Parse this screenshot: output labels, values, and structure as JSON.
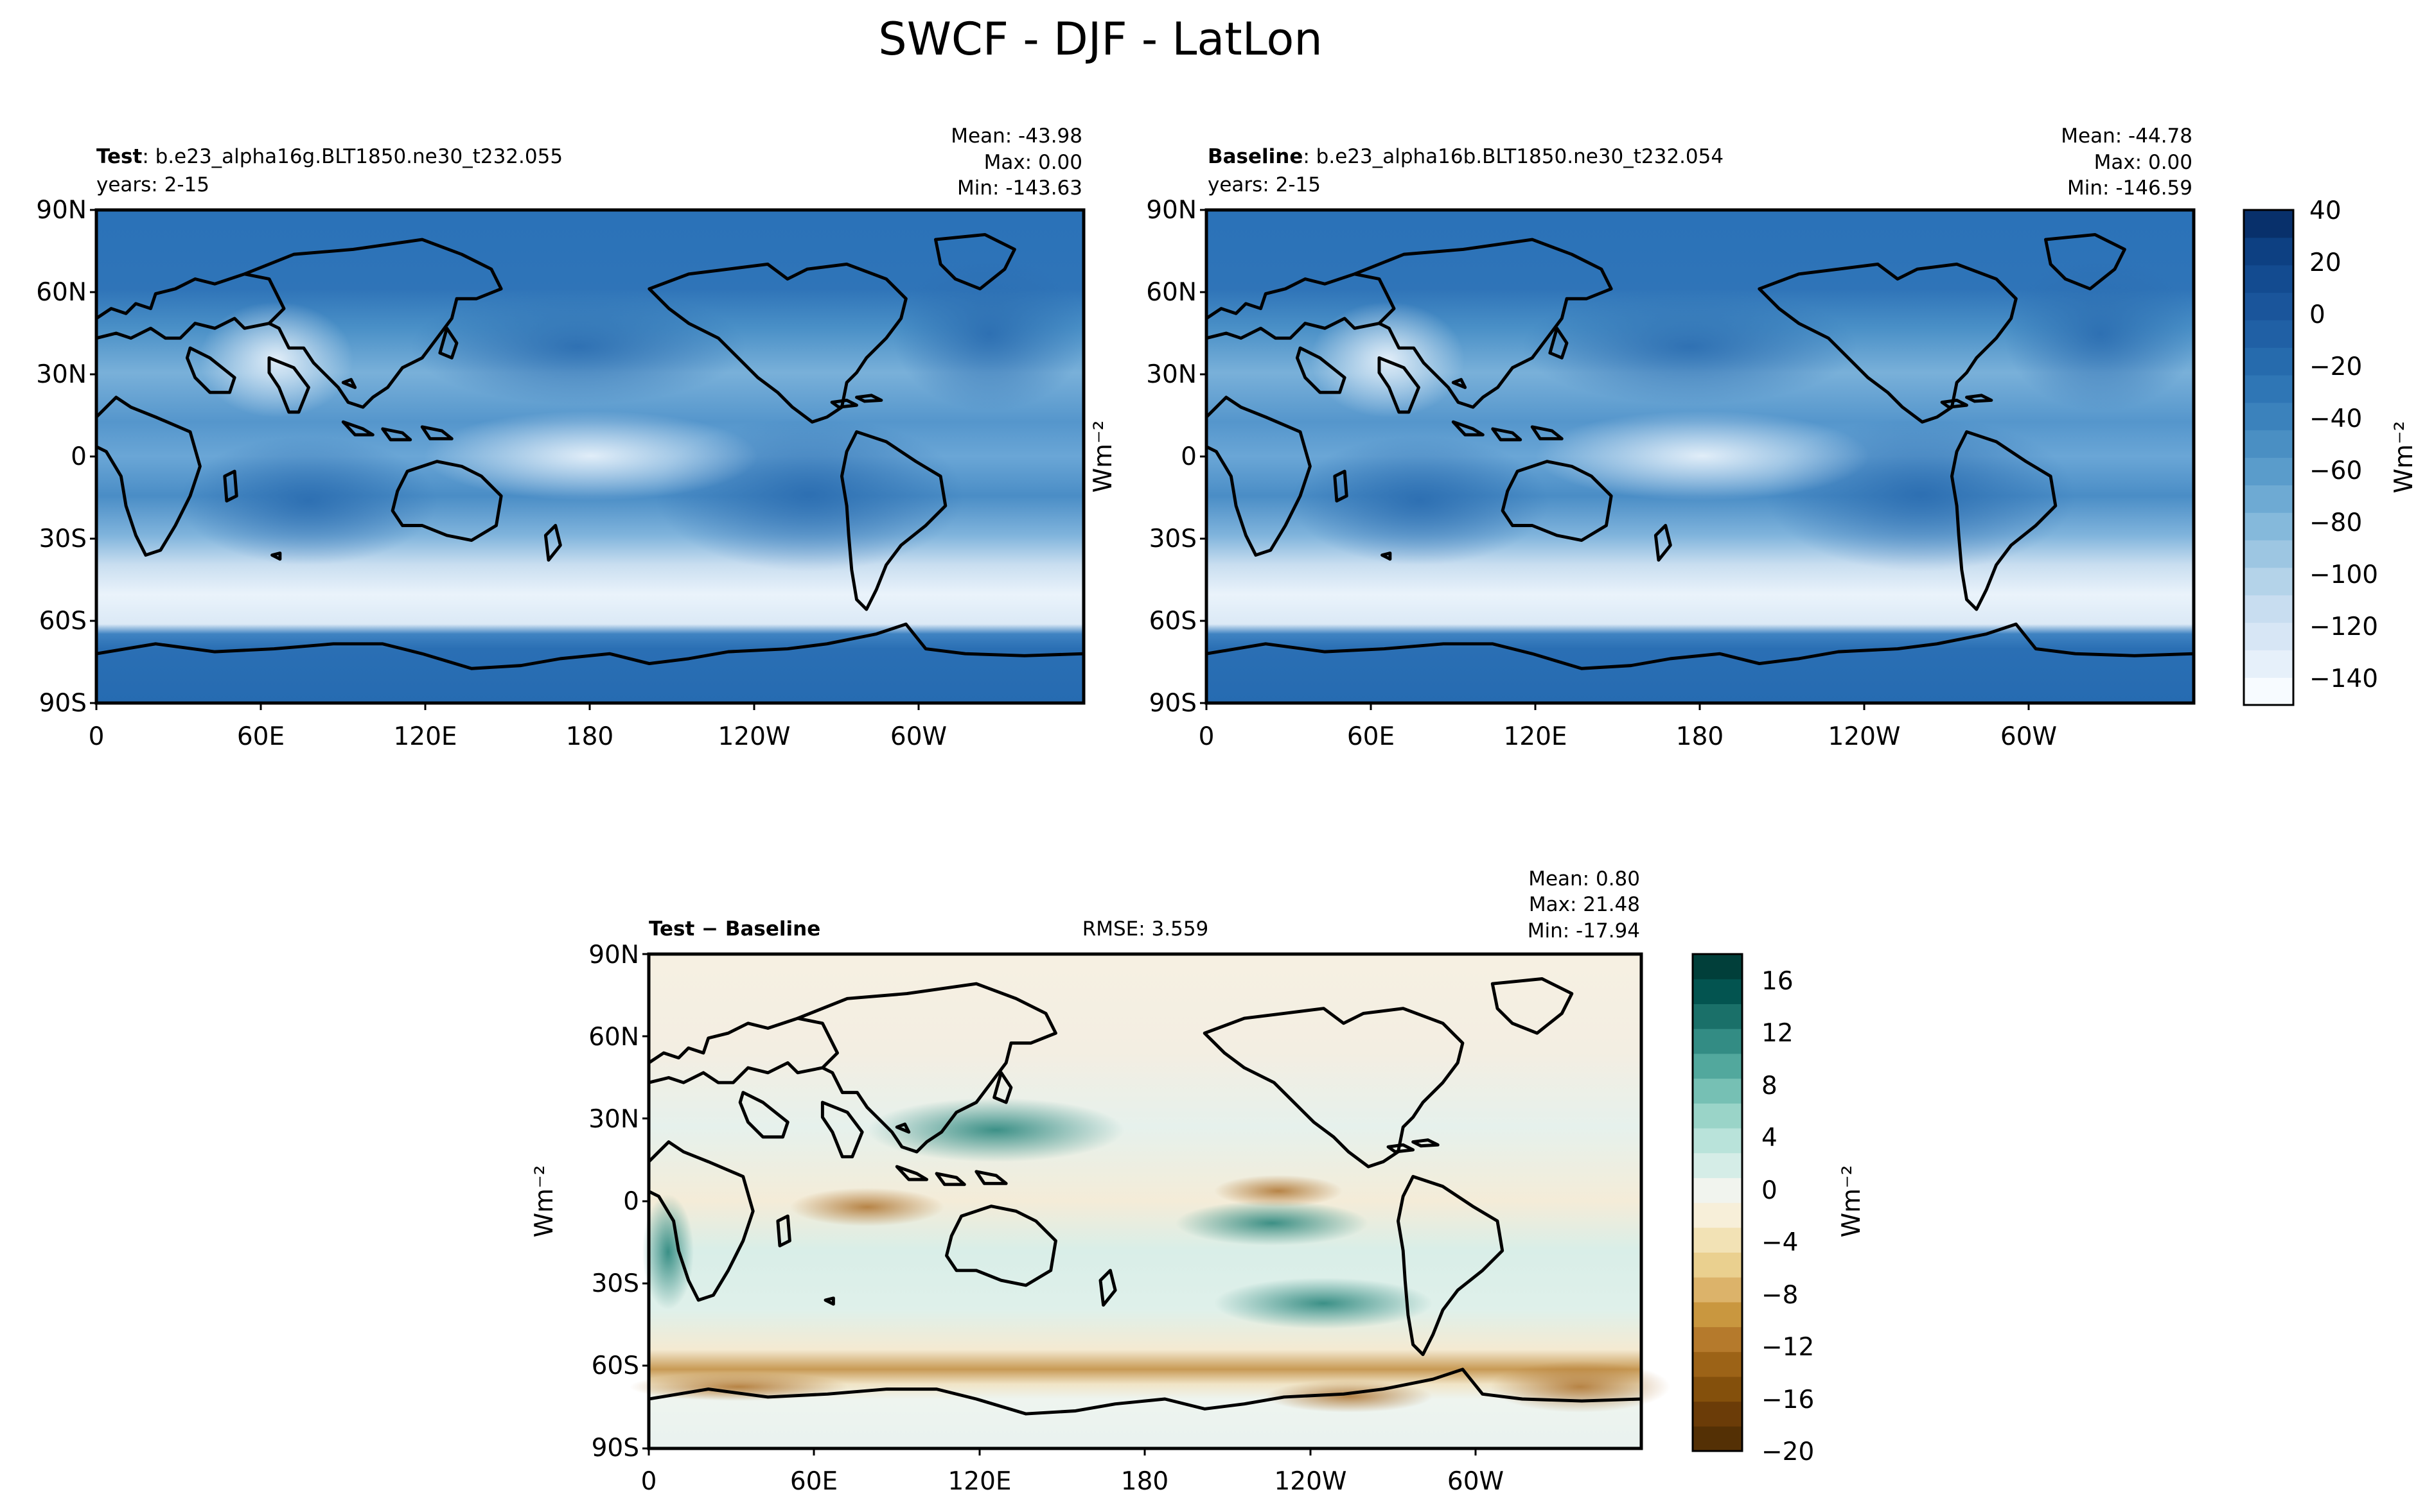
{
  "figure": {
    "title": "SWCF - DJF - LatLon"
  },
  "panels": [
    {
      "id": "test",
      "label_bold": "Test",
      "label_text": ": b.e23_alpha16g.BLT1850.ne30_t232.055",
      "years": "years: 2-15",
      "stats": [
        "Mean: -43.98",
        "Max:  0.00",
        "Min: -143.63"
      ],
      "unit_label": ""
    },
    {
      "id": "baseline",
      "label_bold": "Baseline",
      "label_text": ": b.e23_alpha16b.BLT1850.ne30_t232.054",
      "years": "years: 2-15",
      "stats": [
        "Mean: -44.78",
        "Max:  0.00",
        "Min: -146.59"
      ],
      "unit_label": "Wm⁻²"
    },
    {
      "id": "diff",
      "label_bold": "Test − Baseline",
      "label_text": "",
      "years": "",
      "rmse": "RMSE: 3.559",
      "stats": [
        "Mean:  0.80",
        "Max: 21.48",
        "Min: -17.94"
      ],
      "unit_label": "Wm⁻²"
    }
  ],
  "axes": {
    "lat_ticks": [
      "90N",
      "60N",
      "30N",
      "0",
      "30S",
      "60S",
      "90S"
    ],
    "lon_ticks": [
      "0",
      "60E",
      "120E",
      "180",
      "120W",
      "60W"
    ]
  },
  "colorbars": {
    "main": {
      "ticks": [
        "40",
        "20",
        "0",
        "−20",
        "−40",
        "−60",
        "−80",
        "−100",
        "−120",
        "−140"
      ],
      "unit": "Wm⁻²",
      "range": [
        -150,
        40
      ],
      "colors": [
        "#f7fbff",
        "#e6f0fa",
        "#d7e6f5",
        "#c8ddf0",
        "#b4d3e9",
        "#9dc6e2",
        "#85b9db",
        "#6eaad3",
        "#5a9ccb",
        "#4a8fc3",
        "#3b82bc",
        "#2f76b5",
        "#266bad",
        "#2060a5",
        "#1a559b",
        "#134b90",
        "#0d4082",
        "#08306b"
      ]
    },
    "diff": {
      "ticks": [
        "16",
        "12",
        "8",
        "4",
        "0",
        "−4",
        "−8",
        "−12",
        "−16",
        "−20"
      ],
      "unit": "Wm⁻²",
      "range": [
        -20,
        18
      ],
      "colors": [
        "#543005",
        "#6b3c08",
        "#84500c",
        "#9c6317",
        "#b57a2c",
        "#c9973f",
        "#dcb36a",
        "#ead08f",
        "#f2e2b5",
        "#f7efd9",
        "#f1f4ee",
        "#d5ede7",
        "#b9e3da",
        "#9ad4c8",
        "#76c0b4",
        "#52a89d",
        "#338c84",
        "#1a7069",
        "#035450",
        "#013f3a"
      ]
    }
  },
  "chart_data": [
    {
      "type": "heatmap",
      "title": "SWCF - DJF - LatLon",
      "series": [
        {
          "name": "Test",
          "values": []
        }
      ],
      "xlabel": "",
      "ylabel": "",
      "x_ticks": [
        "0",
        "60E",
        "120E",
        "180",
        "120W",
        "60W"
      ],
      "y_ticks": [
        "90N",
        "60N",
        "30N",
        "0",
        "30S",
        "60S",
        "90S"
      ],
      "colorbar_range": [
        -150,
        40
      ],
      "units": "Wm⁻²",
      "stats": {
        "mean": -43.98,
        "max": 0.0,
        "min": -143.63
      }
    },
    {
      "type": "heatmap",
      "series": [
        {
          "name": "Baseline",
          "values": []
        }
      ],
      "xlabel": "",
      "ylabel": "",
      "x_ticks": [
        "0",
        "60E",
        "120E",
        "180",
        "120W",
        "60W"
      ],
      "y_ticks": [
        "90N",
        "60N",
        "30N",
        "0",
        "30S",
        "60S",
        "90S"
      ],
      "colorbar_range": [
        -150,
        40
      ],
      "units": "Wm⁻²",
      "stats": {
        "mean": -44.78,
        "max": 0.0,
        "min": -146.59
      }
    },
    {
      "type": "heatmap",
      "series": [
        {
          "name": "Test − Baseline",
          "values": []
        }
      ],
      "xlabel": "",
      "ylabel": "",
      "x_ticks": [
        "0",
        "60E",
        "120E",
        "180",
        "120W",
        "60W"
      ],
      "y_ticks": [
        "90N",
        "60N",
        "30N",
        "0",
        "30S",
        "60S",
        "90S"
      ],
      "colorbar_range": [
        -20,
        18
      ],
      "units": "Wm⁻²",
      "stats": {
        "mean": 0.8,
        "max": 21.48,
        "min": -17.94,
        "rmse": 3.559
      }
    }
  ]
}
